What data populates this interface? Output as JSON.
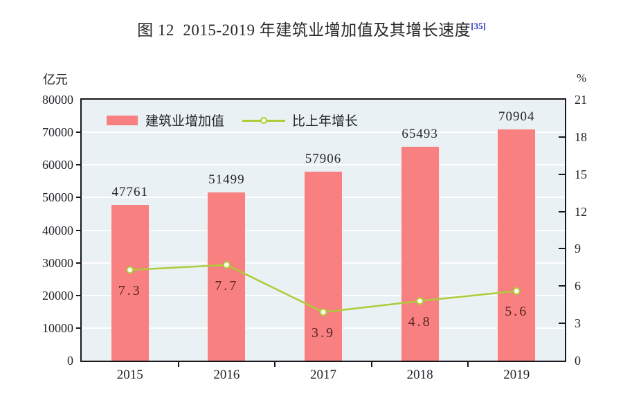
{
  "figure": {
    "title_main": "图 12  2015-2019 年建筑业增加值及其增长速度",
    "title_sup": "[35]",
    "footnote_color": "#2d36c2"
  },
  "chart_data": {
    "type": "bar",
    "subtype": "bar+line dual axis",
    "title": "图 12 2015-2019 年建筑业增加值及其增长速度[35]",
    "categories": [
      "2015",
      "2016",
      "2017",
      "2018",
      "2019"
    ],
    "series": [
      {
        "name": "建筑业增加值",
        "type": "bar",
        "axis": "left",
        "unit": "亿元",
        "values": [
          47761,
          51499,
          57906,
          65493,
          70904
        ],
        "color": "#F88080",
        "label_color": "#26262e"
      },
      {
        "name": "比上年增长",
        "type": "line",
        "axis": "right",
        "unit": "%",
        "values": [
          7.3,
          7.7,
          3.9,
          4.8,
          5.6
        ],
        "color": "#AECB38",
        "marker_fill": "#FDFFF2",
        "label_color": "#5a2323"
      }
    ],
    "y_left": {
      "unit": "亿元",
      "min": 0,
      "max": 80000,
      "step": 10000
    },
    "y_right": {
      "unit": "%",
      "min": 0,
      "max": 21,
      "step": 3
    },
    "plot_bg": "#E9F1F4",
    "grid": "horizontal white gridlines",
    "legend_position": "inside top-left",
    "frame_color": "#17171c"
  }
}
